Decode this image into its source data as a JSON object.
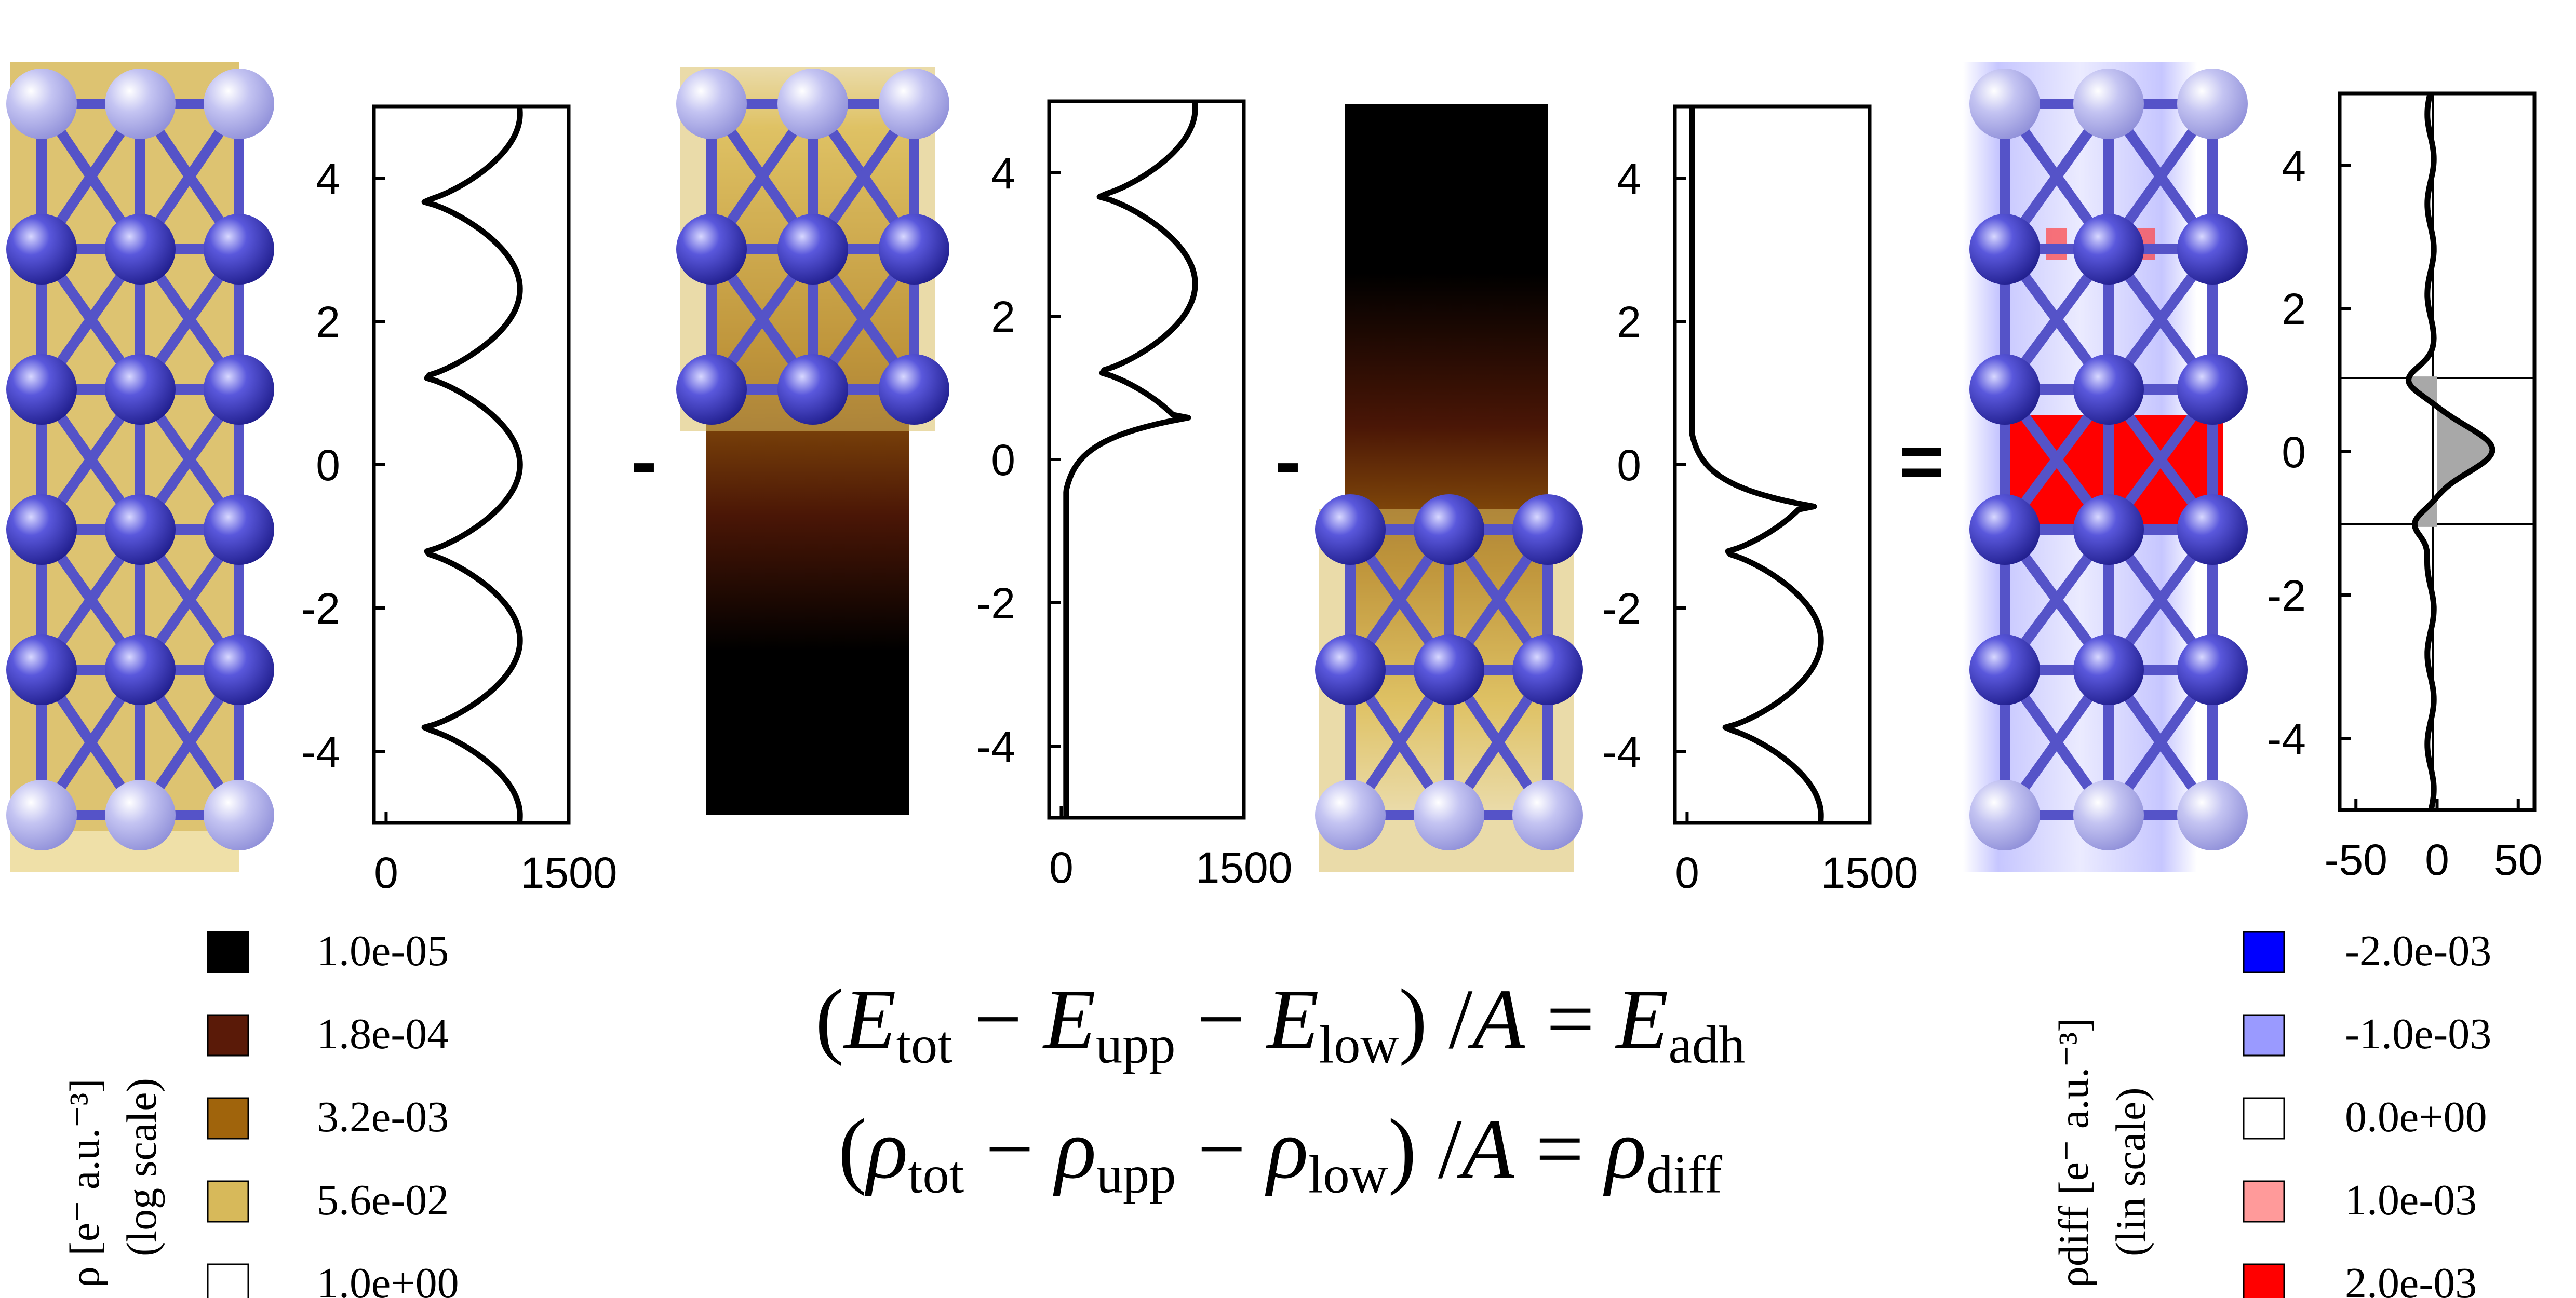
{
  "operators": {
    "minus1": "-",
    "minus2": "-",
    "equals": "="
  },
  "profiles": {
    "total": {
      "ticks_x": [
        "0",
        "1500"
      ],
      "ticks_y": [
        "4",
        "2",
        "0",
        "-2",
        "-4"
      ]
    },
    "upper": {
      "ticks_x": [
        "0",
        "1500"
      ],
      "ticks_y": [
        "4",
        "2",
        "0",
        "-2",
        "-4"
      ]
    },
    "lower": {
      "ticks_x": [
        "0",
        "1500"
      ],
      "ticks_y": [
        "4",
        "2",
        "0",
        "-2",
        "-4"
      ]
    },
    "diff": {
      "ticks_x": [
        "-50",
        "0",
        "50"
      ],
      "ticks_y": [
        "4",
        "2",
        "0",
        "-2",
        "-4"
      ]
    }
  },
  "legend_left": {
    "title_1": "ρ [e⁻ a.u.⁻³]",
    "title_2": "(log scale)",
    "entries": [
      {
        "label": "1.0e-05",
        "color": "#000000"
      },
      {
        "label": "1.8e-04",
        "color": "#5a1a08"
      },
      {
        "label": "3.2e-03",
        "color": "#a0640c"
      },
      {
        "label": "5.6e-02",
        "color": "#d7b95a"
      },
      {
        "label": "1.0e+00",
        "color": "#ffffff"
      }
    ]
  },
  "legend_right": {
    "title_1": "ρdiff [e⁻ a.u.⁻³]",
    "title_2": "(lin scale)",
    "entries": [
      {
        "label": "-2.0e-03",
        "color": "#0000ff"
      },
      {
        "label": "-1.0e-03",
        "color": "#9a9aff"
      },
      {
        "label": "0.0e+00",
        "color": "#ffffff"
      },
      {
        "label": "1.0e-03",
        "color": "#ff9a9a"
      },
      {
        "label": "2.0e-03",
        "color": "#ff0000"
      }
    ]
  },
  "equations": {
    "line1": {
      "E": "E",
      "tot": "tot",
      "upp": "upp",
      "low": "low",
      "A": "A",
      "adh": "adh"
    },
    "line2": {
      "rho": "ρ",
      "tot": "tot",
      "upp": "upp",
      "low": "low",
      "A": "A",
      "diff": "diff"
    }
  },
  "colors": {
    "atom": "#3a38c8",
    "atom_light": "#a8a8e8",
    "bond": "#5553c8",
    "gold": "#d7b95a",
    "positive": "#ff0000",
    "negative": "#9a9aff"
  }
}
